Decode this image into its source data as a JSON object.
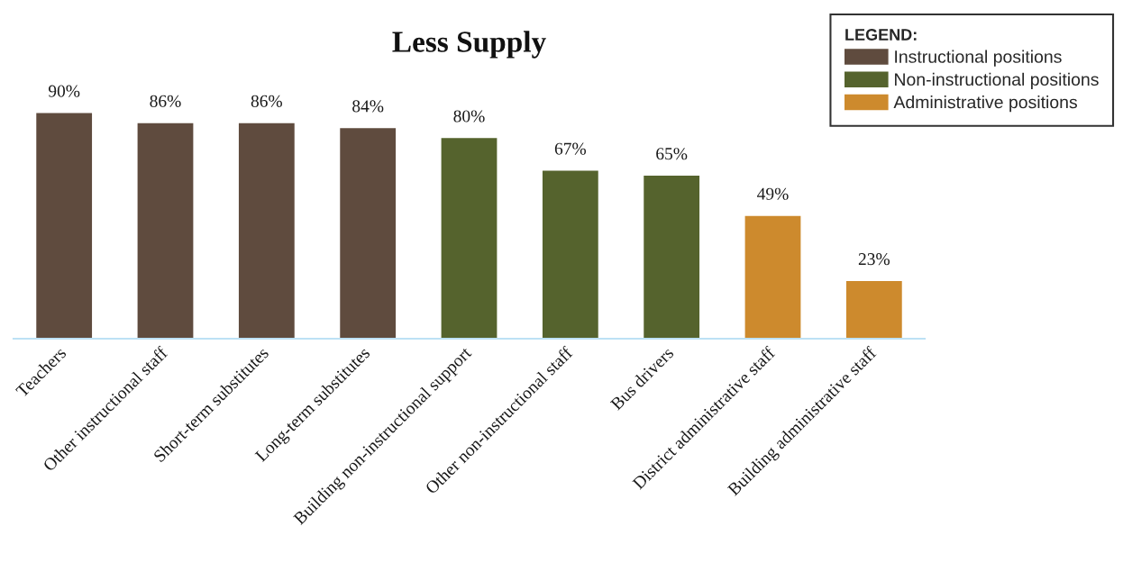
{
  "chart_data": {
    "type": "bar",
    "title": "Less Supply",
    "categories": [
      "Teachers",
      "Other instructional staff",
      "Short-term substitutes",
      "Long-term substitutes",
      "Building non-instructional support",
      "Other non-instructional staff",
      "Bus drivers",
      "District administrative staff",
      "Building administrative staff"
    ],
    "series": [
      {
        "name": "Instructional positions",
        "color": "#5f4b3e",
        "values": [
          90,
          86,
          86,
          84,
          null,
          null,
          null,
          null,
          null
        ],
        "value_labels": [
          "90%",
          "86%",
          "86%",
          "84%",
          null,
          null,
          null,
          null,
          null
        ]
      },
      {
        "name": "Non-instructional positions",
        "color": "#55632d",
        "values": [
          null,
          null,
          null,
          null,
          80,
          67,
          65,
          null,
          null
        ],
        "value_labels": [
          null,
          null,
          null,
          null,
          "80%",
          "67%",
          "65%",
          null,
          null
        ]
      },
      {
        "name": "Administrative positions",
        "color": "#cd8a2d",
        "values": [
          null,
          null,
          null,
          null,
          null,
          null,
          null,
          49,
          23
        ],
        "value_labels": [
          null,
          null,
          null,
          null,
          null,
          null,
          null,
          "49%",
          "23%"
        ]
      }
    ],
    "legend_title": "LEGEND:",
    "legend": "top right",
    "grid": false
  }
}
